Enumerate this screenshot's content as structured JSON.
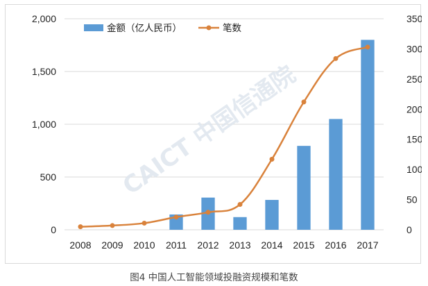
{
  "caption": "图4 中国人工智能领域投融资规模和笔数",
  "watermark": "CAICT 中国信通院",
  "chart_data": {
    "type": "bar",
    "categories": [
      "2008",
      "2009",
      "2010",
      "2011",
      "2012",
      "2013",
      "2014",
      "2015",
      "2016",
      "2017"
    ],
    "series": [
      {
        "name": "金额（亿人民币）",
        "type": "bar",
        "axis": "left",
        "color": "#5b9bd5",
        "values": [
          0,
          0,
          0,
          145,
          305,
          120,
          283,
          795,
          1050,
          1800
        ]
      },
      {
        "name": "笔数",
        "type": "line",
        "axis": "right",
        "color": "#d9823b",
        "values": [
          5,
          7,
          11,
          21,
          29,
          42,
          117,
          212,
          284,
          303
        ]
      }
    ],
    "y_left": {
      "range": [
        0,
        2000
      ],
      "ticks": [
        "0",
        "500",
        "1,000",
        "1,500",
        "2,000"
      ],
      "tick_values": [
        0,
        500,
        1000,
        1500,
        2000
      ]
    },
    "y_right": {
      "range": [
        0,
        350
      ],
      "ticks": [
        "0",
        "50",
        "100",
        "150",
        "200",
        "250",
        "300",
        "350"
      ],
      "tick_values": [
        0,
        50,
        100,
        150,
        200,
        250,
        300,
        350
      ]
    },
    "grid": true,
    "legend": "top-left"
  }
}
